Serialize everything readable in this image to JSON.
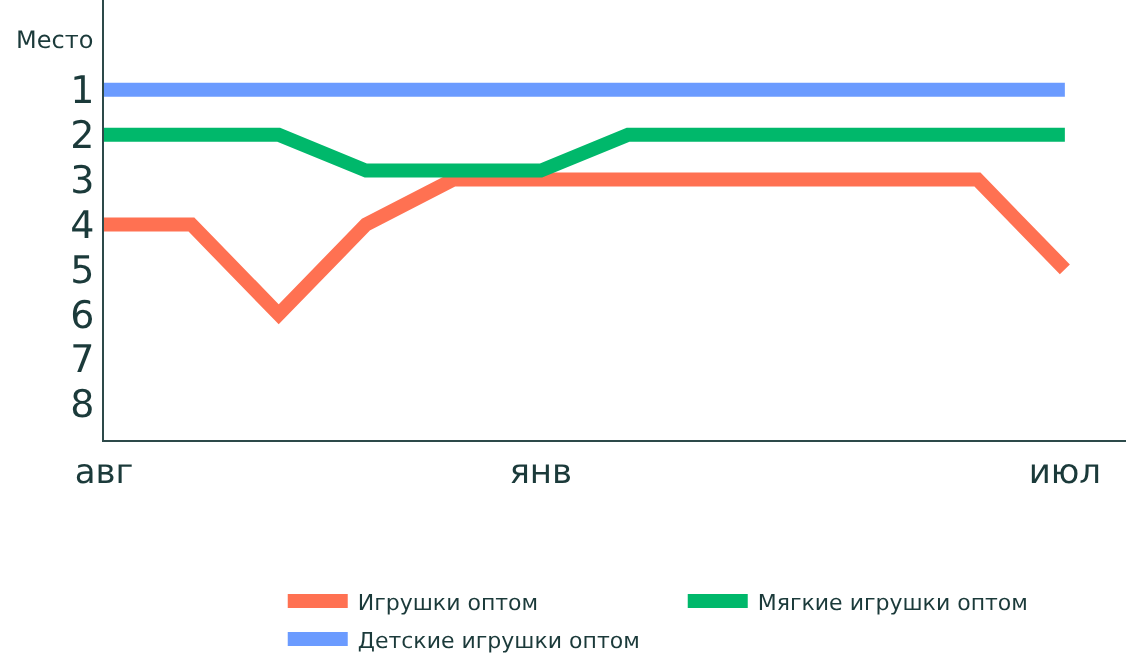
{
  "chart_data": {
    "type": "line",
    "ylabel": "Место",
    "categories": [
      "авг",
      null,
      null,
      null,
      null,
      "янв",
      null,
      null,
      null,
      null,
      null,
      "июл"
    ],
    "series": [
      {
        "name": "Игрушки оптом",
        "color": "#ff7152",
        "values": [
          4,
          4,
          6,
          4,
          3,
          3,
          3,
          3,
          3,
          3,
          3,
          5
        ]
      },
      {
        "name": "Мягкие игрушки оптом",
        "color": "#00b86b",
        "values": [
          2,
          2,
          2,
          2.8,
          2.8,
          2.8,
          2,
          2,
          2,
          2,
          2,
          2
        ]
      },
      {
        "name": "Детские игрушки оптом",
        "color": "#6b9bff",
        "values": [
          1,
          1,
          1,
          1,
          1,
          1,
          1,
          1,
          1,
          1,
          1,
          1
        ]
      }
    ],
    "ylim": [
      8.8,
      -1
    ],
    "yticks": [
      1,
      2,
      3,
      4,
      5,
      6,
      7,
      8
    ],
    "legend": "bottom",
    "marker": "none",
    "line_style": "solid"
  }
}
